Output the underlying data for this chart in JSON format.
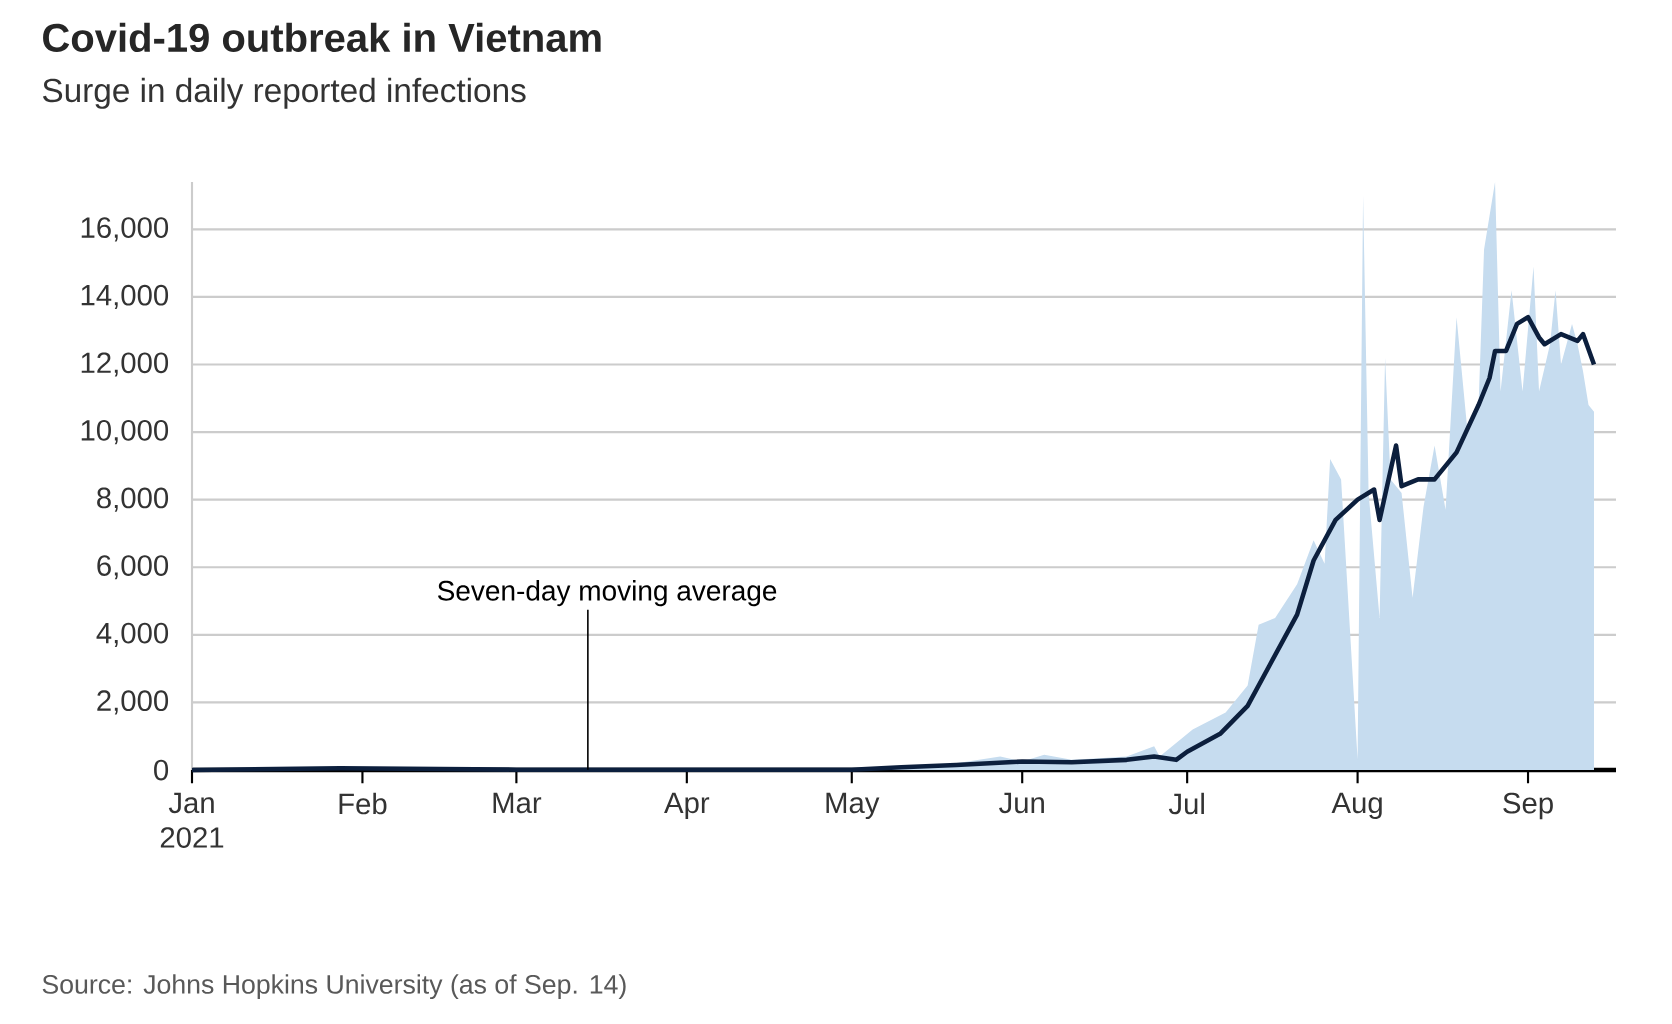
{
  "chart_data": {
    "type": "area",
    "title": "Covid-19 outbreak in Vietnam",
    "subtitle": "Surge in daily reported infections",
    "xlim": [
      "2021-01-01",
      "2021-09-17"
    ],
    "ylim": [
      0,
      17400
    ],
    "xticks": [
      {
        "value": "2021-01-01",
        "label": "Jan 2021"
      },
      {
        "value": "2021-02-01",
        "label": "Feb"
      },
      {
        "value": "2021-03-01",
        "label": "Mar"
      },
      {
        "value": "2021-04-01",
        "label": "Apr"
      },
      {
        "value": "2021-05-01",
        "label": "May"
      },
      {
        "value": "2021-06-01",
        "label": "Jun"
      },
      {
        "value": "2021-07-01",
        "label": "Jul"
      },
      {
        "value": "2021-08-01",
        "label": "Aug"
      },
      {
        "value": "2021-09-01",
        "label": "Sep"
      }
    ],
    "yticks": [
      0,
      {
        "value": 2000,
        "label": "2,000"
      },
      {
        "value": 4000,
        "label": "4,000"
      },
      {
        "value": 6000,
        "label": "6,000"
      },
      {
        "value": 8000,
        "label": "8,000"
      },
      {
        "value": 10000,
        "label": "10,000"
      },
      {
        "value": 12000,
        "label": "12,000"
      },
      {
        "value": 14000,
        "label": "14,000"
      },
      {
        "value": 16000,
        "label": "16,000"
      }
    ],
    "grid": "y",
    "marker": "none",
    "series": [
      {
        "color": "#c6dcef",
        "x": [
          "2021-01-01",
          "2021-01-28",
          "2021-02-15",
          "2021-03-01",
          "2021-04-15",
          "2021-05-01",
          "2021-05-10",
          "2021-05-20",
          "2021-05-28",
          "2021-06-01",
          "2021-06-05",
          "2021-06-10",
          "2021-06-15",
          "2021-06-20",
          "2021-06-25",
          "2021-06-26",
          "2021-07-02",
          "2021-07-08",
          "2021-07-12",
          "2021-07-14",
          "2021-07-17",
          "2021-07-21",
          "2021-07-24",
          "2021-07-26",
          "2021-07-27",
          "2021-07-29",
          "2021-08-01",
          "2021-08-02",
          "2021-08-03",
          "2021-08-05",
          "2021-08-06",
          "2021-08-07",
          "2021-08-09",
          "2021-08-11",
          "2021-08-13",
          "2021-08-15",
          "2021-08-17",
          "2021-08-19",
          "2021-08-21",
          "2021-08-23",
          "2021-08-24",
          "2021-08-26",
          "2021-08-27",
          "2021-08-29",
          "2021-08-31",
          "2021-09-02",
          "2021-09-03",
          "2021-09-05",
          "2021-09-06",
          "2021-09-07",
          "2021-09-09",
          "2021-09-10",
          "2021-09-11",
          "2021-09-12",
          "2021-09-13"
        ],
        "values": [
          0,
          60,
          20,
          10,
          10,
          20,
          100,
          200,
          400,
          250,
          450,
          300,
          350,
          400,
          700,
          400,
          1200,
          1700,
          2500,
          4300,
          4500,
          5500,
          6800,
          6100,
          9200,
          8600,
          300,
          17000,
          8200,
          4500,
          12200,
          8600,
          8200,
          5100,
          7800,
          9600,
          7700,
          13400,
          10000,
          10800,
          15400,
          17400,
          11200,
          14200,
          11200,
          14900,
          11200,
          12600,
          14200,
          12000,
          13200,
          12600,
          11800,
          10800,
          10600
        ]
      },
      {
        "type": "line",
        "color": "#0c1f3d",
        "x": [
          "2021-01-01",
          "2021-01-28",
          "2021-02-15",
          "2021-03-01",
          "2021-04-01",
          "2021-05-01",
          "2021-05-10",
          "2021-05-20",
          "2021-06-01",
          "2021-06-10",
          "2021-06-20",
          "2021-06-25",
          "2021-06-29",
          "2021-07-01",
          "2021-07-07",
          "2021-07-12",
          "2021-07-16",
          "2021-07-21",
          "2021-07-24",
          "2021-07-28",
          "2021-08-01",
          "2021-08-04",
          "2021-08-05",
          "2021-08-08",
          "2021-08-09",
          "2021-08-12",
          "2021-08-15",
          "2021-08-19",
          "2021-08-23",
          "2021-08-25",
          "2021-08-26",
          "2021-08-28",
          "2021-08-30",
          "2021-09-01",
          "2021-09-03",
          "2021-09-04",
          "2021-09-07",
          "2021-09-10",
          "2021-09-11",
          "2021-09-13"
        ],
        "values": [
          0,
          50,
          30,
          10,
          10,
          10,
          80,
          150,
          250,
          230,
          300,
          400,
          300,
          540,
          1070,
          1900,
          3100,
          4600,
          6200,
          7400,
          8000,
          8300,
          7400,
          9600,
          8400,
          8600,
          8600,
          9400,
          10800,
          11600,
          12400,
          12400,
          13200,
          13400,
          12800,
          12600,
          12900,
          12700,
          12900,
          12000
        ]
      }
    ],
    "annotations": [
      {
        "text": "Seven-day moving average",
        "x": "2021-03-14",
        "y": 10
      },
      "Source: Johns Hopkins University (as of Sep. 14)"
    ]
  }
}
